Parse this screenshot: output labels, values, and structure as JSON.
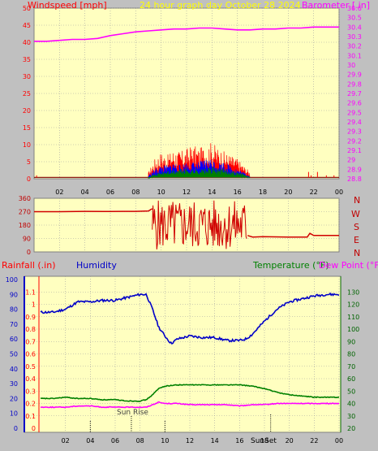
{
  "header": {
    "left_title": "Windspeed [mph]",
    "center_title": "24 hour graph day   October 28 2024",
    "right_title": "Barometer [.in]"
  },
  "direction_labels": [
    "N",
    "W",
    "S",
    "E",
    "N"
  ],
  "bottom_titles": {
    "rainfall": "Rainfall (.in)",
    "humidity": "Humidity",
    "temperature": "Temperature (°F)",
    "dewpoint": "Dew Point (°F)"
  },
  "annotations": {
    "sunrise": "Sun Rise",
    "sunset": "SunSet"
  },
  "colors": {
    "background": "#c0c0c0",
    "plot_bg": "#ffffc0",
    "grid": "#a0a0a0",
    "wind": "#ff0000",
    "gust": "#0000ff",
    "avg": "#008000",
    "barometer": "#ff00ff",
    "direction": "#d00000",
    "humidity": "#0000c8",
    "temperature": "#008000",
    "dewpoint": "#ff00ff",
    "rain_axis": "#ff0000",
    "title_left": "#ff0000",
    "title_center": "#ffff00",
    "title_right": "#ff00ff",
    "temp_axis": "#006400"
  },
  "chart_data": [
    {
      "id": "wind-barometer",
      "type": "line",
      "xlabel": "",
      "x_ticks": [
        "02",
        "04",
        "06",
        "08",
        "10",
        "12",
        "14",
        "16",
        "18",
        "20",
        "22",
        "00"
      ],
      "xlim": [
        0,
        24
      ],
      "y_left": {
        "label": "Windspeed [mph]",
        "ylim": [
          0,
          50
        ],
        "ticks": [
          "0",
          "5",
          "10",
          "15",
          "20",
          "25",
          "30",
          "35",
          "40",
          "45",
          "50"
        ]
      },
      "y_right": {
        "label": "Barometer [.in]",
        "ylim": [
          28.8,
          30.6
        ],
        "ticks": [
          "28.8",
          "28.9",
          "29",
          "29.1",
          "29.2",
          "29.3",
          "29.4",
          "29.5",
          "29.6",
          "29.7",
          "29.8",
          "29.9",
          "30",
          "30.1",
          "30.2",
          "30.3",
          "30.4",
          "30.5",
          "30.6"
        ]
      },
      "series": [
        {
          "name": "Barometer",
          "axis": "right",
          "x": [
            0,
            1,
            2,
            3,
            4,
            5,
            6,
            7,
            8,
            9,
            10,
            11,
            12,
            13,
            14,
            15,
            16,
            17,
            18,
            19,
            20,
            21,
            22,
            23,
            24
          ],
          "values": [
            30.25,
            30.25,
            30.26,
            30.27,
            30.27,
            30.28,
            30.31,
            30.33,
            30.35,
            30.36,
            30.37,
            30.38,
            30.38,
            30.39,
            30.39,
            30.38,
            30.37,
            30.37,
            30.38,
            30.38,
            30.39,
            30.39,
            30.4,
            30.4,
            30.4
          ]
        },
        {
          "name": "Wind gust",
          "axis": "left",
          "x": [
            9.0,
            9.5,
            10.0,
            10.5,
            11.0,
            11.5,
            12.0,
            12.5,
            13.0,
            13.5,
            14.0,
            14.5,
            15.0,
            15.5,
            16.0,
            16.5,
            17.0
          ],
          "values": [
            2,
            6,
            8,
            7,
            9,
            8,
            9,
            10,
            9,
            10,
            11,
            9,
            8,
            7,
            6,
            4,
            2
          ]
        },
        {
          "name": "Wind speed",
          "axis": "left",
          "x": [
            9.0,
            9.5,
            10.0,
            10.5,
            11.0,
            11.5,
            12.0,
            12.5,
            13.0,
            13.5,
            14.0,
            14.5,
            15.0,
            15.5,
            16.0,
            16.5,
            17.0
          ],
          "values": [
            1,
            3,
            4,
            4,
            5,
            4,
            5,
            5,
            5,
            6,
            6,
            5,
            5,
            4,
            3,
            2,
            1
          ]
        },
        {
          "name": "Average",
          "axis": "left",
          "x": [
            9.0,
            9.5,
            10.0,
            10.5,
            11.0,
            11.5,
            12.0,
            12.5,
            13.0,
            13.5,
            14.0,
            14.5,
            15.0,
            15.5,
            16.0,
            16.5,
            17.0
          ],
          "values": [
            0.5,
            1.5,
            2,
            2.5,
            2.5,
            3,
            3,
            3,
            3,
            3,
            3.5,
            3,
            3,
            2.5,
            2,
            1.5,
            0.5
          ]
        },
        {
          "name": "Calm",
          "axis": "left",
          "x": [
            0,
            24
          ],
          "values": [
            0.4,
            0.4
          ]
        }
      ],
      "spikes": {
        "x": [
          0.2,
          21.6,
          21.8,
          22.3,
          23.0,
          23.6
        ],
        "values": [
          1,
          2,
          1,
          2,
          1,
          1
        ]
      }
    },
    {
      "id": "wind-direction",
      "type": "line",
      "xlim": [
        0,
        24
      ],
      "ylim": [
        0,
        360
      ],
      "y_ticks": [
        "0",
        "90",
        "180",
        "270",
        "360"
      ],
      "series": [
        {
          "name": "Direction",
          "x": [
            0,
            2,
            4,
            6,
            7,
            8,
            9,
            9.3
          ],
          "values": [
            270,
            270,
            272,
            271,
            272,
            272,
            275,
            290
          ]
        },
        {
          "name": "Direction (late)",
          "x": [
            16.8,
            17.2,
            18,
            19,
            20,
            21,
            21.5,
            21.7,
            22,
            23,
            24
          ],
          "values": [
            110,
            100,
            102,
            101,
            100,
            100,
            100,
            125,
            110,
            110,
            110
          ]
        }
      ],
      "variable_range": {
        "from": 9.3,
        "to": 16.8,
        "min": 10,
        "max": 350
      }
    },
    {
      "id": "rain-humidity-temp",
      "type": "line",
      "x_ticks": [
        "02",
        "04",
        "06",
        "08",
        "10",
        "12",
        "14",
        "16",
        "18",
        "20",
        "22",
        "00"
      ],
      "xlim": [
        0,
        24
      ],
      "y_rain": {
        "label": "Rainfall (.in)",
        "ylim": [
          0,
          1.2
        ],
        "ticks": [
          "0",
          "0.1",
          "0.2",
          "0.3",
          "0.4",
          "0.5",
          "0.6",
          "0.7",
          "0.8",
          "0.9",
          "1",
          "1.1"
        ]
      },
      "y_humidity": {
        "label": "Humidity",
        "ylim": [
          0,
          100
        ],
        "ticks": [
          "0",
          "10",
          "20",
          "30",
          "40",
          "50",
          "60",
          "70",
          "80",
          "90",
          "100"
        ]
      },
      "y_temp": {
        "label": "Temperature (°F)",
        "ylim": [
          20,
          140
        ],
        "ticks": [
          "20",
          "30",
          "40",
          "50",
          "60",
          "70",
          "80",
          "90",
          "100",
          "110",
          "120",
          "130"
        ]
      },
      "series": [
        {
          "name": "Humidity",
          "axis": "humidity",
          "x": [
            0,
            1,
            2,
            3,
            4,
            5,
            6,
            7,
            8,
            8.5,
            9,
            9.5,
            10,
            10.5,
            11,
            12,
            13,
            14,
            15,
            16,
            16.5,
            17,
            18,
            19,
            20,
            21,
            22,
            23,
            24
          ],
          "values": [
            78,
            78,
            80,
            85,
            85,
            86,
            86,
            88,
            90,
            90,
            80,
            68,
            62,
            57,
            60,
            62,
            61,
            61,
            59,
            59,
            60,
            63,
            72,
            80,
            85,
            87,
            89,
            90,
            90
          ]
        },
        {
          "name": "Temperature",
          "axis": "temp",
          "x": [
            0,
            1,
            2,
            3,
            4,
            5,
            6,
            7,
            8,
            8.5,
            9,
            9.5,
            10,
            11,
            12,
            13,
            14,
            15,
            16,
            17,
            18,
            19,
            20,
            21,
            22,
            23,
            24
          ],
          "values": [
            44,
            44,
            45,
            44,
            44,
            43,
            43,
            42,
            42,
            43,
            47,
            52,
            54,
            55,
            55,
            55,
            55,
            55,
            55,
            54,
            52,
            49,
            47,
            46,
            45,
            45,
            45
          ]
        },
        {
          "name": "Dew Point",
          "axis": "temp",
          "x": [
            0,
            1,
            2,
            3,
            4,
            5,
            6,
            7,
            8,
            8.5,
            9,
            9.5,
            10,
            11,
            12,
            13,
            14,
            15,
            16,
            17,
            18,
            19,
            20,
            21,
            22,
            23,
            24
          ],
          "values": [
            37,
            37,
            37,
            38,
            38,
            37,
            37,
            37,
            37,
            37,
            39,
            41,
            40,
            40,
            39,
            39,
            39,
            39,
            38,
            39,
            39,
            40,
            40,
            40,
            40,
            40,
            40
          ]
        }
      ],
      "markers": {
        "sunrise": 7.3,
        "sunset": 18.5,
        "x_marks": [
          4,
          10
        ]
      }
    }
  ]
}
